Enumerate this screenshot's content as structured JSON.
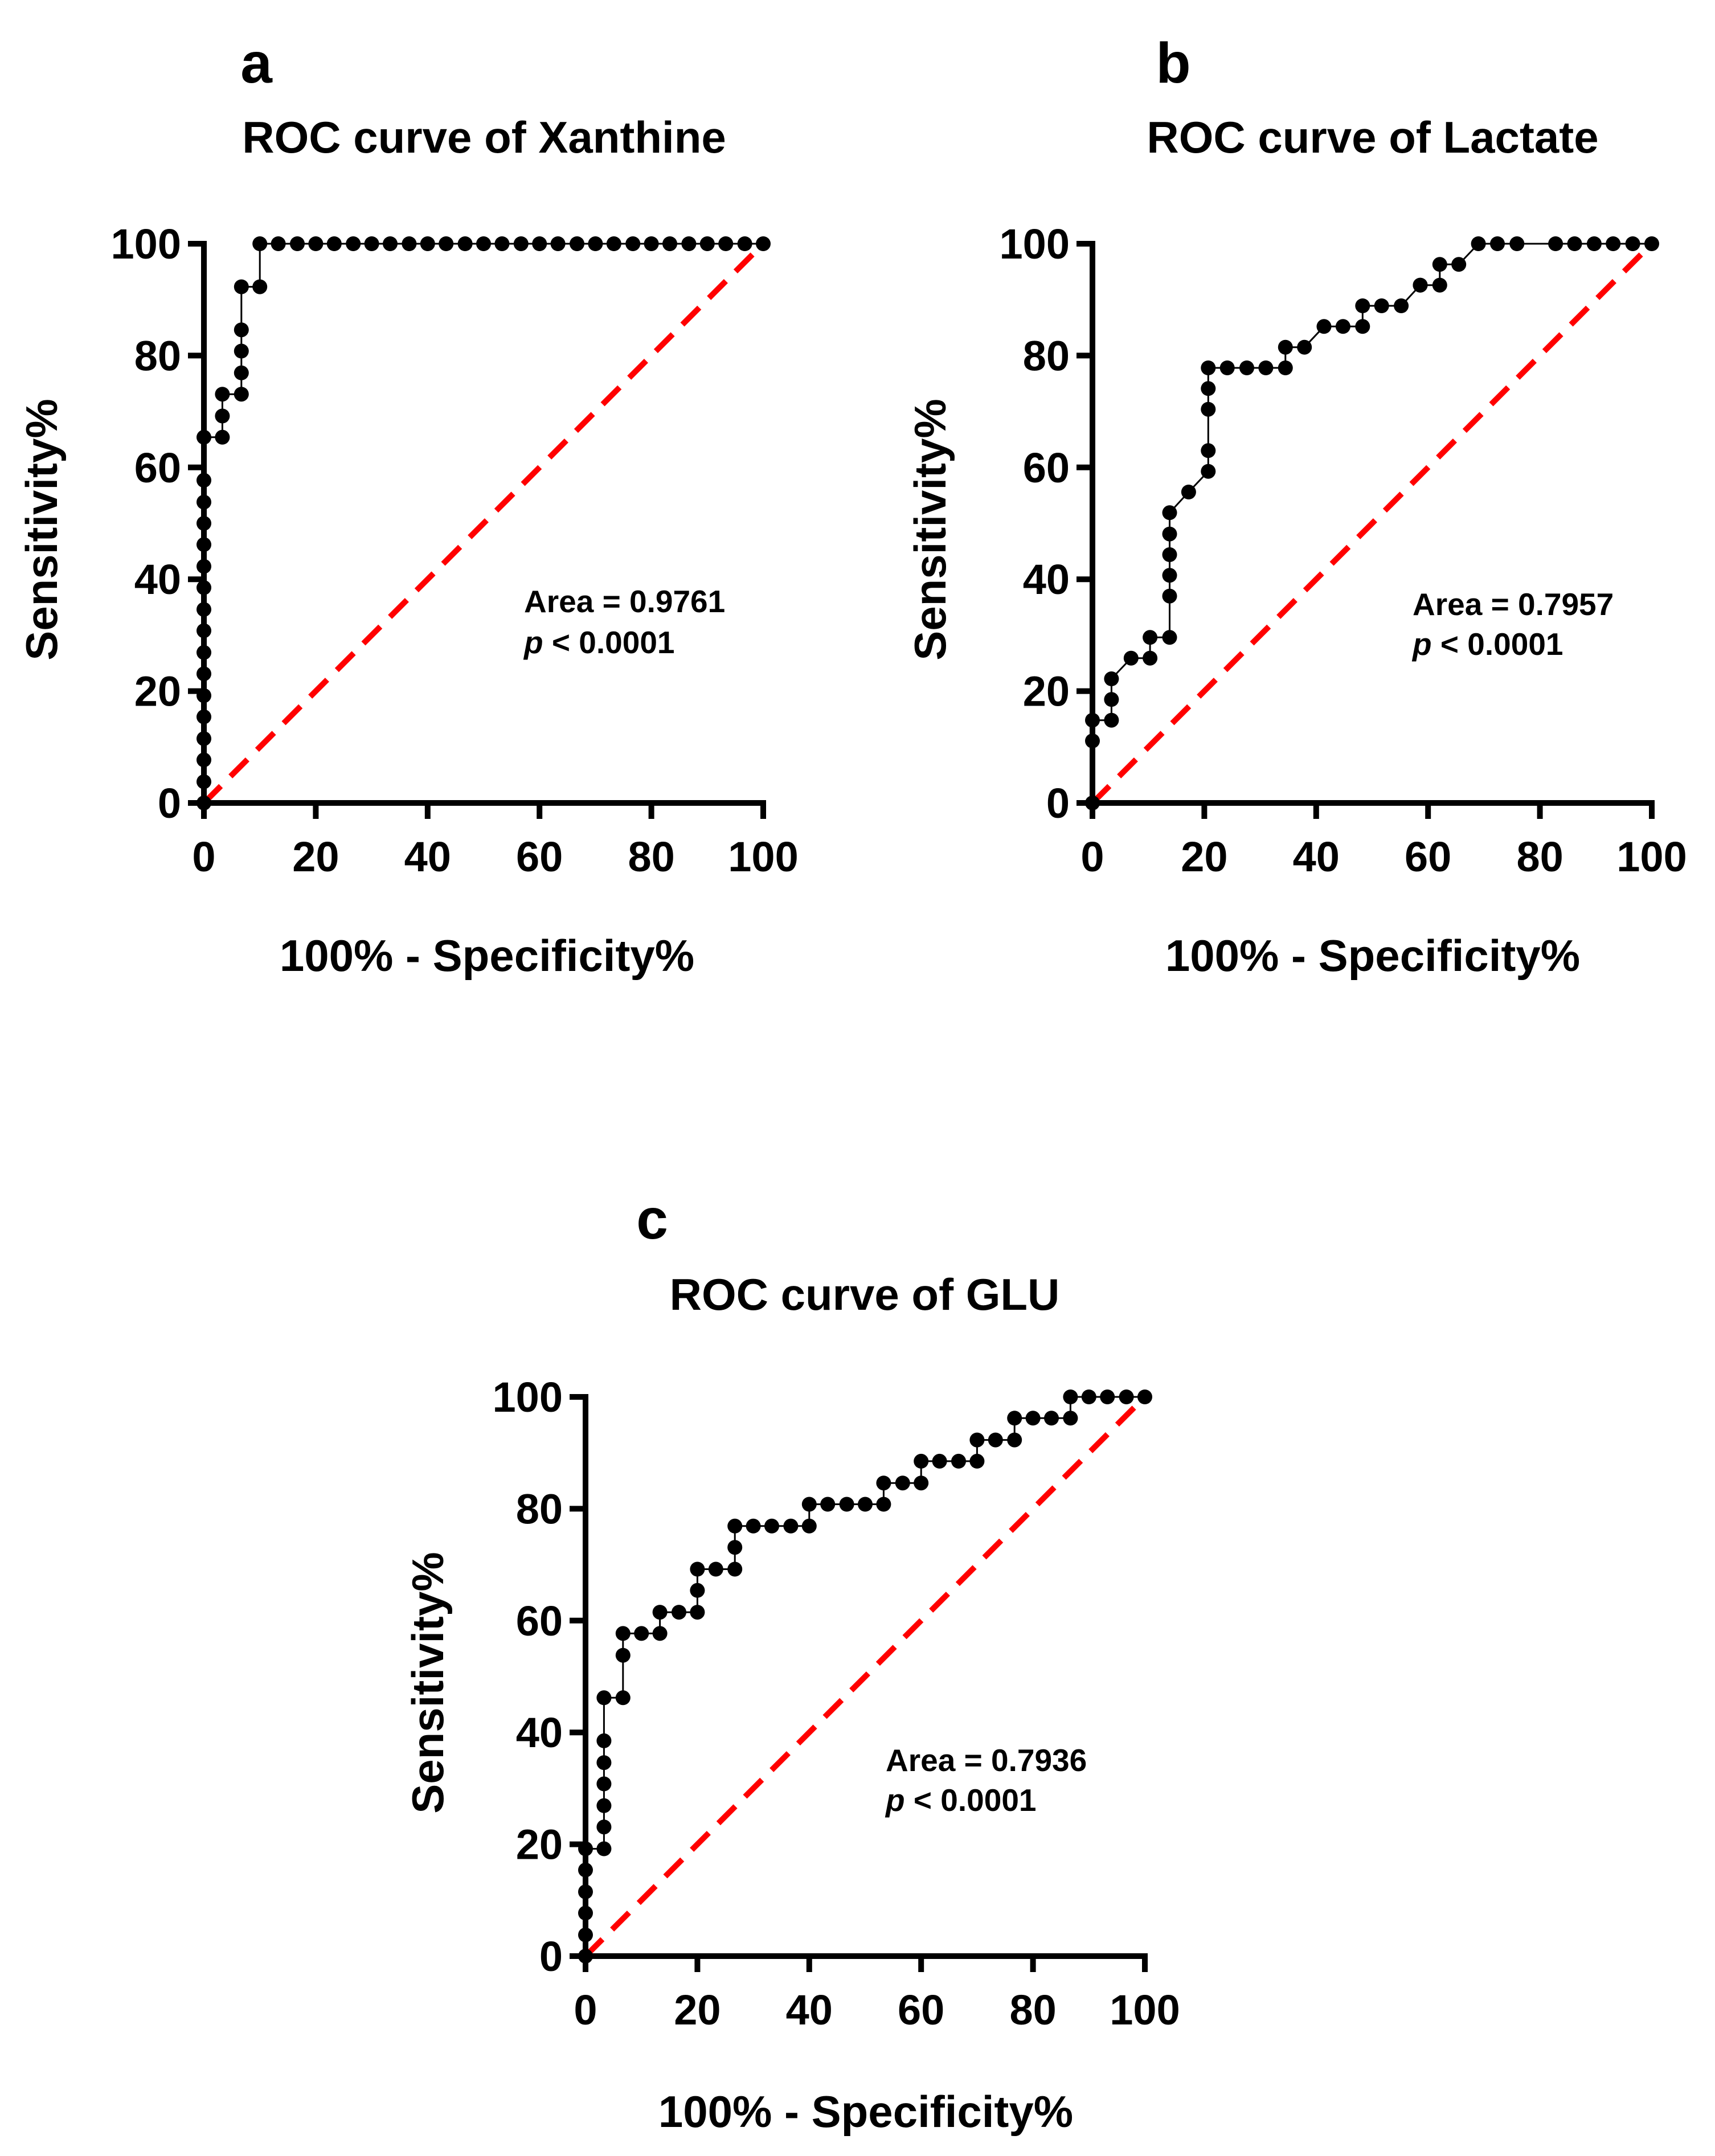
{
  "colors": {
    "roc": "#000000",
    "reference": "#ff0000",
    "background": "#ffffff"
  },
  "chart_data": [
    {
      "panel": "a",
      "type": "line",
      "title": "ROC curve of Xanthine",
      "xlabel": "100% - Specificity%",
      "ylabel": "Sensitivity%",
      "xlim": [
        0,
        100
      ],
      "ylim": [
        0,
        100
      ],
      "xticks": [
        "0",
        "20",
        "40",
        "60",
        "80",
        "100"
      ],
      "yticks": [
        "0",
        "20",
        "40",
        "60",
        "80",
        "100"
      ],
      "annotation": {
        "area": "Area = 0.9761",
        "p_italic": "p",
        "p_rest": " < 0.0001"
      },
      "series": [
        {
          "x": [
            0,
            0,
            0,
            0,
            0,
            0,
            0,
            0,
            0,
            0,
            0,
            0,
            0,
            0,
            0,
            0,
            0,
            3.3,
            3.3,
            3.3,
            6.7,
            6.7,
            6.7,
            6.7,
            6.7,
            10,
            10,
            13.3,
            16.7,
            20,
            23.3,
            26.7,
            30,
            33.3,
            36.7,
            40,
            43.3,
            46.7,
            50,
            53.3,
            56.7,
            60,
            63.3,
            66.7,
            70,
            73.3,
            76.7,
            80,
            83.3,
            86.7,
            90,
            93.3,
            96.7,
            100
          ],
          "y": [
            0,
            3.8,
            7.7,
            11.5,
            15.4,
            19.2,
            23.1,
            26.9,
            30.8,
            34.6,
            38.5,
            42.3,
            46.2,
            50,
            53.8,
            57.7,
            65.4,
            65.4,
            69.2,
            73.1,
            73.1,
            76.9,
            80.8,
            84.6,
            92.3,
            92.3,
            100,
            100,
            100,
            100,
            100,
            100,
            100,
            100,
            100,
            100,
            100,
            100,
            100,
            100,
            100,
            100,
            100,
            100,
            100,
            100,
            100,
            100,
            100,
            100,
            100,
            100,
            100,
            100
          ]
        },
        {
          "name": "",
          "x": [
            0,
            100
          ],
          "y": [
            0,
            100
          ]
        }
      ]
    },
    {
      "panel": "b",
      "type": "line",
      "title": "ROC curve of Lactate",
      "xlabel": "100% - Specificity%",
      "ylabel": "Sensitivity%",
      "xlim": [
        0,
        100
      ],
      "ylim": [
        0,
        100
      ],
      "xticks": [
        "0",
        "20",
        "40",
        "60",
        "80",
        "100"
      ],
      "yticks": [
        "0",
        "20",
        "40",
        "60",
        "80",
        "100"
      ],
      "annotation": {
        "area": "Area = 0.7957",
        "p_italic": "p",
        "p_rest": " < 0.0001"
      },
      "series": [
        {
          "x": [
            0,
            0,
            0,
            3.4,
            3.4,
            3.4,
            6.9,
            10.3,
            10.3,
            13.8,
            13.8,
            13.8,
            13.8,
            13.8,
            13.8,
            17.2,
            20.7,
            20.7,
            20.7,
            20.7,
            20.7,
            24.1,
            27.6,
            31,
            34.5,
            34.5,
            37.9,
            41.4,
            44.8,
            48.3,
            48.3,
            51.7,
            55.2,
            58.6,
            58.6,
            62.1,
            62.1,
            65.5,
            69,
            72.4,
            75.9,
            82.8,
            86.2,
            89.7,
            93.1,
            96.6,
            100
          ],
          "y": [
            0,
            11.1,
            14.8,
            14.8,
            18.5,
            22.2,
            25.9,
            25.9,
            29.6,
            29.6,
            37,
            40.7,
            44.4,
            48.1,
            51.9,
            55.6,
            59.3,
            63,
            70.4,
            74.1,
            77.8,
            77.8,
            77.8,
            77.8,
            77.8,
            81.5,
            81.5,
            85.2,
            85.2,
            85.2,
            88.9,
            88.9,
            88.9,
            92.6,
            92.6,
            92.6,
            96.3,
            96.3,
            100,
            100,
            100,
            100,
            100,
            100,
            100,
            100,
            100
          ]
        },
        {
          "name": "",
          "x": [
            0,
            100
          ],
          "y": [
            0,
            100
          ]
        }
      ]
    },
    {
      "panel": "c",
      "type": "line",
      "title": "ROC curve of GLU",
      "xlabel": "100% - Specificity%",
      "ylabel": "Sensitivity%",
      "xlim": [
        0,
        100
      ],
      "ylim": [
        0,
        100
      ],
      "xticks": [
        "0",
        "20",
        "40",
        "60",
        "80",
        "100"
      ],
      "yticks": [
        "0",
        "20",
        "40",
        "60",
        "80",
        "100"
      ],
      "annotation": {
        "area": "Area = 0.7936",
        "p_italic": "p",
        "p_rest": " < 0.0001"
      },
      "series": [
        {
          "x": [
            0,
            0,
            0,
            0,
            0,
            0,
            3.3,
            3.3,
            3.3,
            3.3,
            3.3,
            3.3,
            3.3,
            6.7,
            6.7,
            6.7,
            10,
            13.3,
            13.3,
            16.7,
            20,
            20,
            20,
            23.3,
            26.7,
            26.7,
            26.7,
            30,
            33.3,
            36.7,
            40,
            40,
            43.3,
            46.7,
            50,
            53.3,
            53.3,
            56.7,
            60,
            60,
            63.3,
            66.7,
            70,
            70,
            73.3,
            76.7,
            76.7,
            80,
            83.3,
            86.7,
            86.7,
            90,
            93.3,
            96.7,
            100
          ],
          "y": [
            0,
            3.8,
            7.7,
            11.5,
            15.4,
            19.2,
            19.2,
            23.1,
            26.9,
            30.8,
            34.6,
            38.5,
            46.2,
            46.2,
            53.8,
            57.7,
            57.7,
            57.7,
            61.5,
            61.5,
            61.5,
            65.4,
            69.2,
            69.2,
            69.2,
            73.1,
            76.9,
            76.9,
            76.9,
            76.9,
            76.9,
            80.8,
            80.8,
            80.8,
            80.8,
            80.8,
            84.6,
            84.6,
            84.6,
            88.5,
            88.5,
            88.5,
            88.5,
            92.3,
            92.3,
            92.3,
            96.2,
            96.2,
            96.2,
            96.2,
            100,
            100,
            100,
            100,
            100
          ]
        },
        {
          "name": "",
          "x": [
            0,
            100
          ],
          "y": [
            0,
            100
          ]
        }
      ]
    }
  ]
}
